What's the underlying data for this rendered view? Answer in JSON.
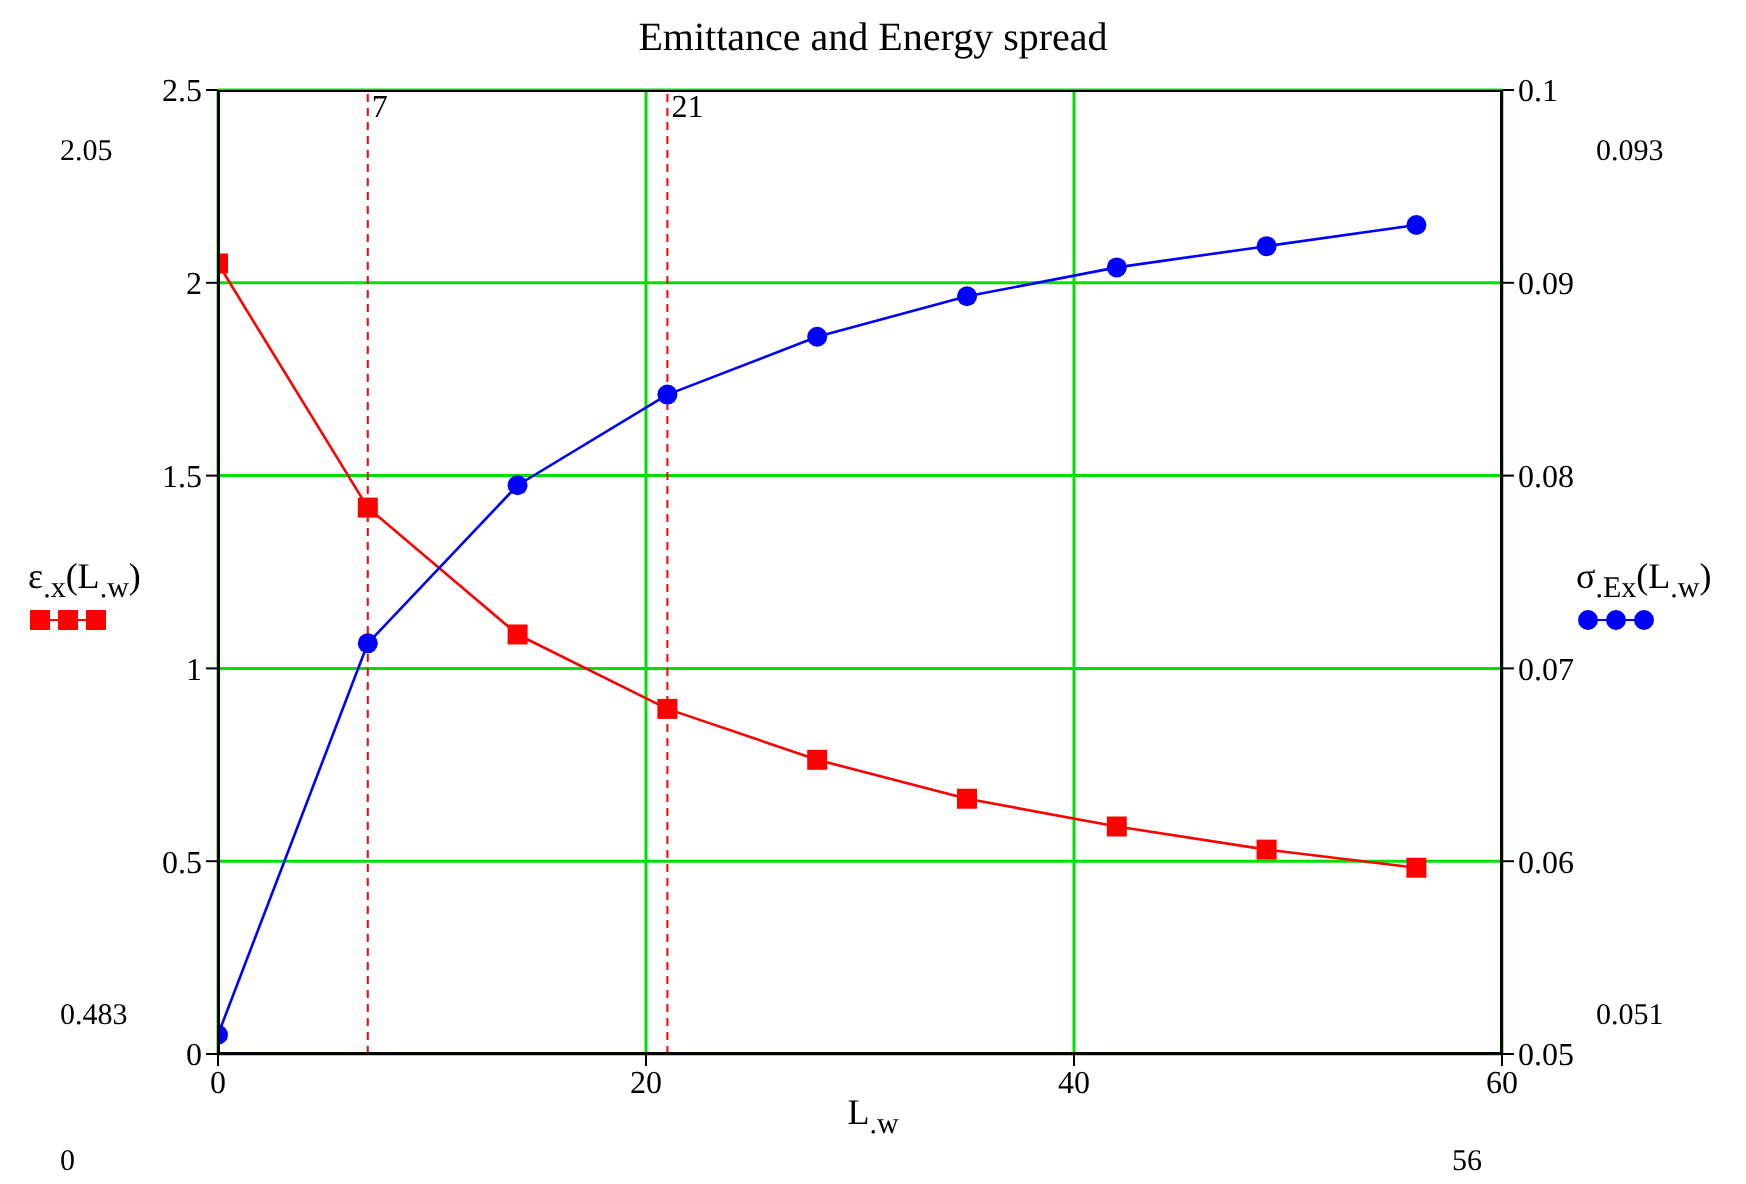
{
  "chart_data": {
    "type": "line",
    "title": "Emittance and Energy spread",
    "xlabel": "L$_{.w}$",
    "ylabel": "ε$_{.x}$(L$_{.w}$)",
    "y2label": "σ$_{.Ex}$(L$_{.w}$)",
    "x": [
      0,
      7,
      14,
      21,
      28,
      35,
      42,
      49,
      56
    ],
    "series": [
      {
        "color": "#ff0000",
        "marker": "square",
        "values": [
          2.05,
          1.417,
          1.088,
          0.895,
          0.763,
          0.662,
          0.59,
          0.53,
          0.483
        ]
      },
      {
        "color": "#0000ff",
        "marker": "circle",
        "axis": "y2",
        "values": [
          0.051,
          0.0713,
          0.0795,
          0.0842,
          0.0872,
          0.0893,
          0.0908,
          0.0919,
          0.093
        ]
      }
    ],
    "xlim": [
      0,
      60
    ],
    "xticks": [
      0,
      20,
      40,
      60
    ],
    "ylim": [
      0,
      2.5
    ],
    "yticks": [
      0,
      0.5,
      1,
      1.5,
      2,
      2.5
    ],
    "y2lim": [
      0.05,
      0.1
    ],
    "y2ticks": [
      0.05,
      0.06,
      0.07,
      0.08,
      0.09,
      0.1
    ],
    "ref_lines": [
      {
        "axis": "x",
        "value": 7,
        "label": "7",
        "color": "#ff0000",
        "line_style": "dashed"
      },
      {
        "axis": "x",
        "value": 21,
        "label": "21",
        "color": "#ff0000",
        "line_style": "dashed"
      }
    ],
    "annotations": [
      "2.05",
      "0.483",
      "0.093",
      "0.051",
      "0",
      "56"
    ],
    "grid": true
  }
}
